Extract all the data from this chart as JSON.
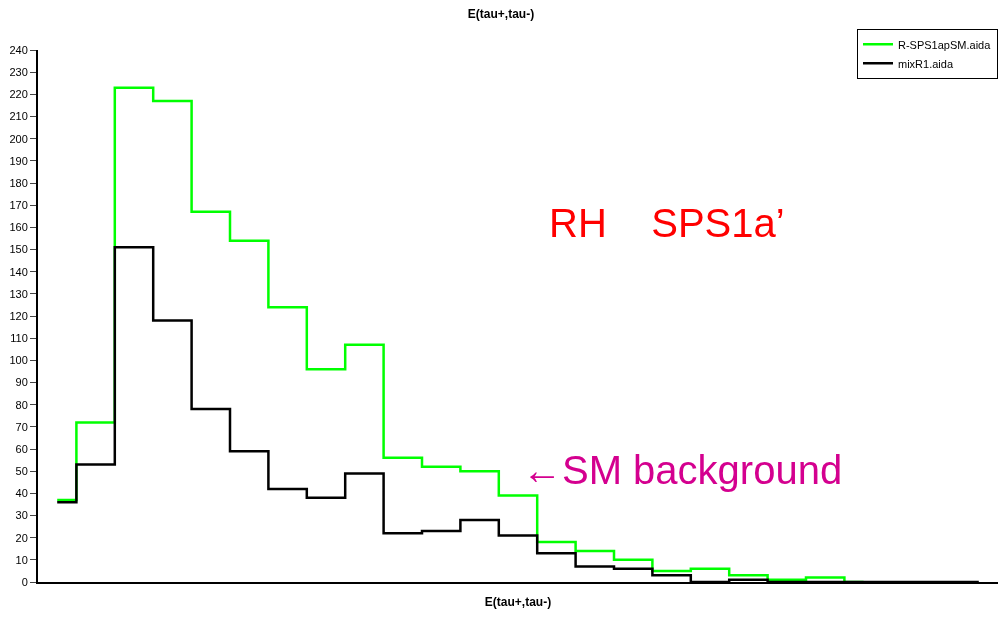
{
  "chart_data": {
    "type": "step",
    "title": "E(tau+,tau-)",
    "xlabel": "E(tau+,tau-)",
    "categories": [
      null,
      null,
      null,
      null,
      null,
      null,
      null,
      null,
      null,
      null,
      null,
      null,
      null,
      null,
      null,
      null,
      null,
      null,
      null,
      null,
      null,
      null,
      null,
      null,
      null
    ],
    "series": [
      {
        "name": "R-SPS1apSM.aida",
        "color": "#00ff00",
        "values": [
          37,
          72,
          223,
          217,
          167,
          154,
          124,
          96,
          107,
          56,
          52,
          50,
          39,
          18,
          14,
          10,
          5,
          6,
          3,
          1,
          2,
          0,
          null,
          null,
          null
        ]
      },
      {
        "name": "mixR1.aida",
        "color": "#000000",
        "values": [
          36,
          53,
          151,
          118,
          78,
          59,
          42,
          38,
          49,
          22,
          23,
          28,
          21,
          13,
          7,
          6,
          3,
          0,
          1,
          0,
          0,
          0,
          0,
          0,
          0
        ]
      }
    ],
    "ylim": [
      0,
      240
    ],
    "yticks": [
      0,
      10,
      20,
      30,
      40,
      50,
      60,
      70,
      80,
      90,
      100,
      110,
      120,
      130,
      140,
      150,
      160,
      170,
      180,
      190,
      200,
      210,
      220,
      230,
      240
    ],
    "legend": "top right",
    "tick_labels": "y",
    "annotations": [
      "RH    SPS1a’",
      "←SM background"
    ]
  }
}
